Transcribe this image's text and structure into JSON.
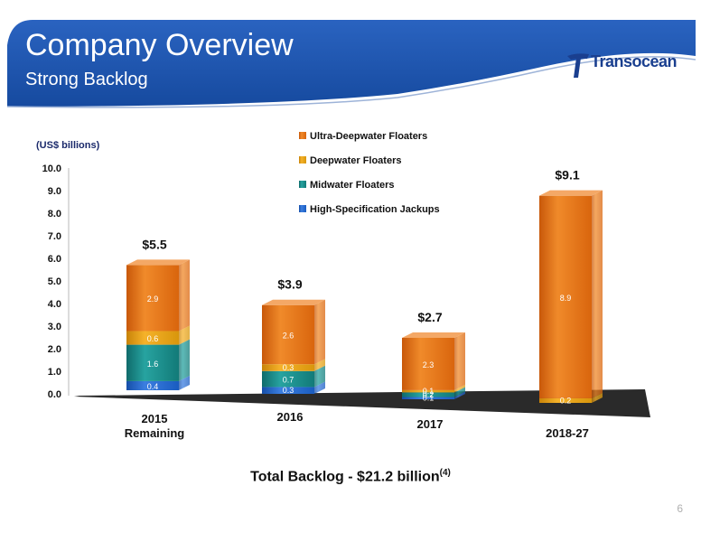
{
  "slide": {
    "title": "Company Overview",
    "subtitle": "Strong Backlog",
    "logo_text": "Transocean",
    "footer": {
      "text": "Total Backlog - $21.2 billion",
      "superscript": "(4)"
    },
    "page_number": "6"
  },
  "colors": {
    "header_blue": "#2156b3",
    "ultra_deepwater": "#e8720f",
    "deepwater": "#e09a12",
    "midwater": "#1a8a8a",
    "high_spec_jackups": "#1f5fc4",
    "floor": "#2a2a2a"
  },
  "chart_data": {
    "type": "bar",
    "stacked": true,
    "unit_label": "(US$ billions)",
    "categories": [
      "2015 Remaining",
      "2016",
      "2017",
      "2018-27"
    ],
    "category_labels": [
      [
        "2015",
        "Remaining"
      ],
      [
        "2016"
      ],
      [
        "2017"
      ],
      [
        "2018-27"
      ]
    ],
    "ylim": [
      0,
      10
    ],
    "yticks": [
      "0.0",
      "1.0",
      "2.0",
      "3.0",
      "4.0",
      "5.0",
      "6.0",
      "7.0",
      "8.0",
      "9.0",
      "10.0"
    ],
    "series": [
      {
        "name": "High-Specification Jackups",
        "values": [
          0.4,
          0.3,
          0.1,
          0
        ]
      },
      {
        "name": "Midwater Floaters",
        "values": [
          1.6,
          0.7,
          0.2,
          0
        ]
      },
      {
        "name": "Deepwater Floaters",
        "values": [
          0.6,
          0.3,
          0.1,
          0.2
        ]
      },
      {
        "name": "Ultra-Deepwater Floaters",
        "values": [
          2.9,
          2.6,
          2.3,
          8.9
        ]
      }
    ],
    "segment_labels": [
      [
        "0.4",
        "0.3",
        "0.1",
        null
      ],
      [
        "1.6",
        "0.7",
        "0.2",
        null
      ],
      [
        "0.6",
        "0.3",
        "0.1",
        "0.2"
      ],
      [
        "2.9",
        "2.6",
        "2.3",
        "8.9"
      ]
    ],
    "totals": [
      "$5.5",
      "$3.9",
      "$2.7",
      "$9.1"
    ],
    "legend_order": [
      "Ultra-Deepwater Floaters",
      "Deepwater Floaters",
      "Midwater Floaters",
      "High-Specification Jackups"
    ],
    "legend_position": "top-center",
    "grid": false
  }
}
